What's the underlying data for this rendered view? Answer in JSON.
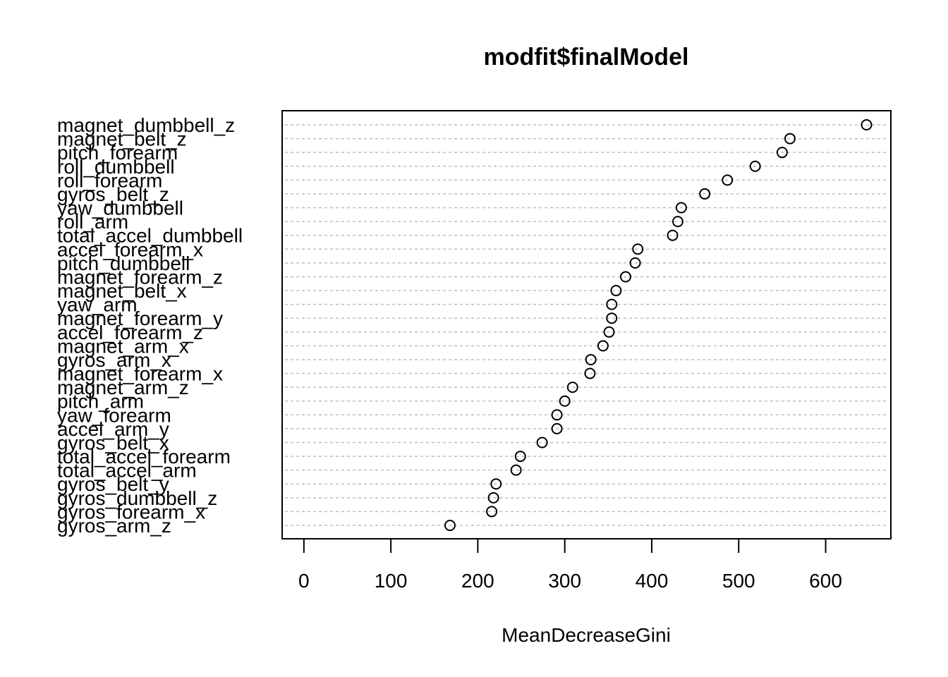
{
  "chart_data": {
    "type": "scatter",
    "title": "modfit$finalModel",
    "xlabel": "MeanDecreaseGini",
    "ylabel": "",
    "xlim": [
      -25,
      675
    ],
    "xticks": [
      "0",
      "100",
      "200",
      "300",
      "400",
      "500",
      "600"
    ],
    "grid": "horizontal dotted",
    "legend": "none",
    "categories": [
      "magnet_dumbbell_z",
      "magnet_belt_z",
      "pitch_forearm",
      "roll_dumbbell",
      "roll_forearm",
      "gyros_belt_z",
      "yaw_dumbbell",
      "roll_arm",
      "total_accel_dumbbell",
      "accel_forearm_x",
      "pitch_dumbbell",
      "magnet_forearm_z",
      "magnet_belt_x",
      "yaw_arm",
      "magnet_forearm_y",
      "accel_forearm_z",
      "magnet_arm_x",
      "gyros_arm_x",
      "magnet_forearm_x",
      "magnet_arm_z",
      "pitch_arm",
      "yaw_forearm",
      "accel_arm_y",
      "gyros_belt_x",
      "total_accel_forearm",
      "total_accel_arm",
      "gyros_belt_y",
      "gyros_dumbbell_z",
      "gyros_forearm_x",
      "gyros_arm_z"
    ],
    "values": [
      647,
      559,
      550,
      519,
      487,
      461,
      434,
      430,
      424,
      384,
      381,
      370,
      359,
      354,
      354,
      351,
      344,
      330,
      329,
      309,
      300,
      291,
      291,
      274,
      249,
      244,
      221,
      218,
      216,
      168
    ]
  }
}
